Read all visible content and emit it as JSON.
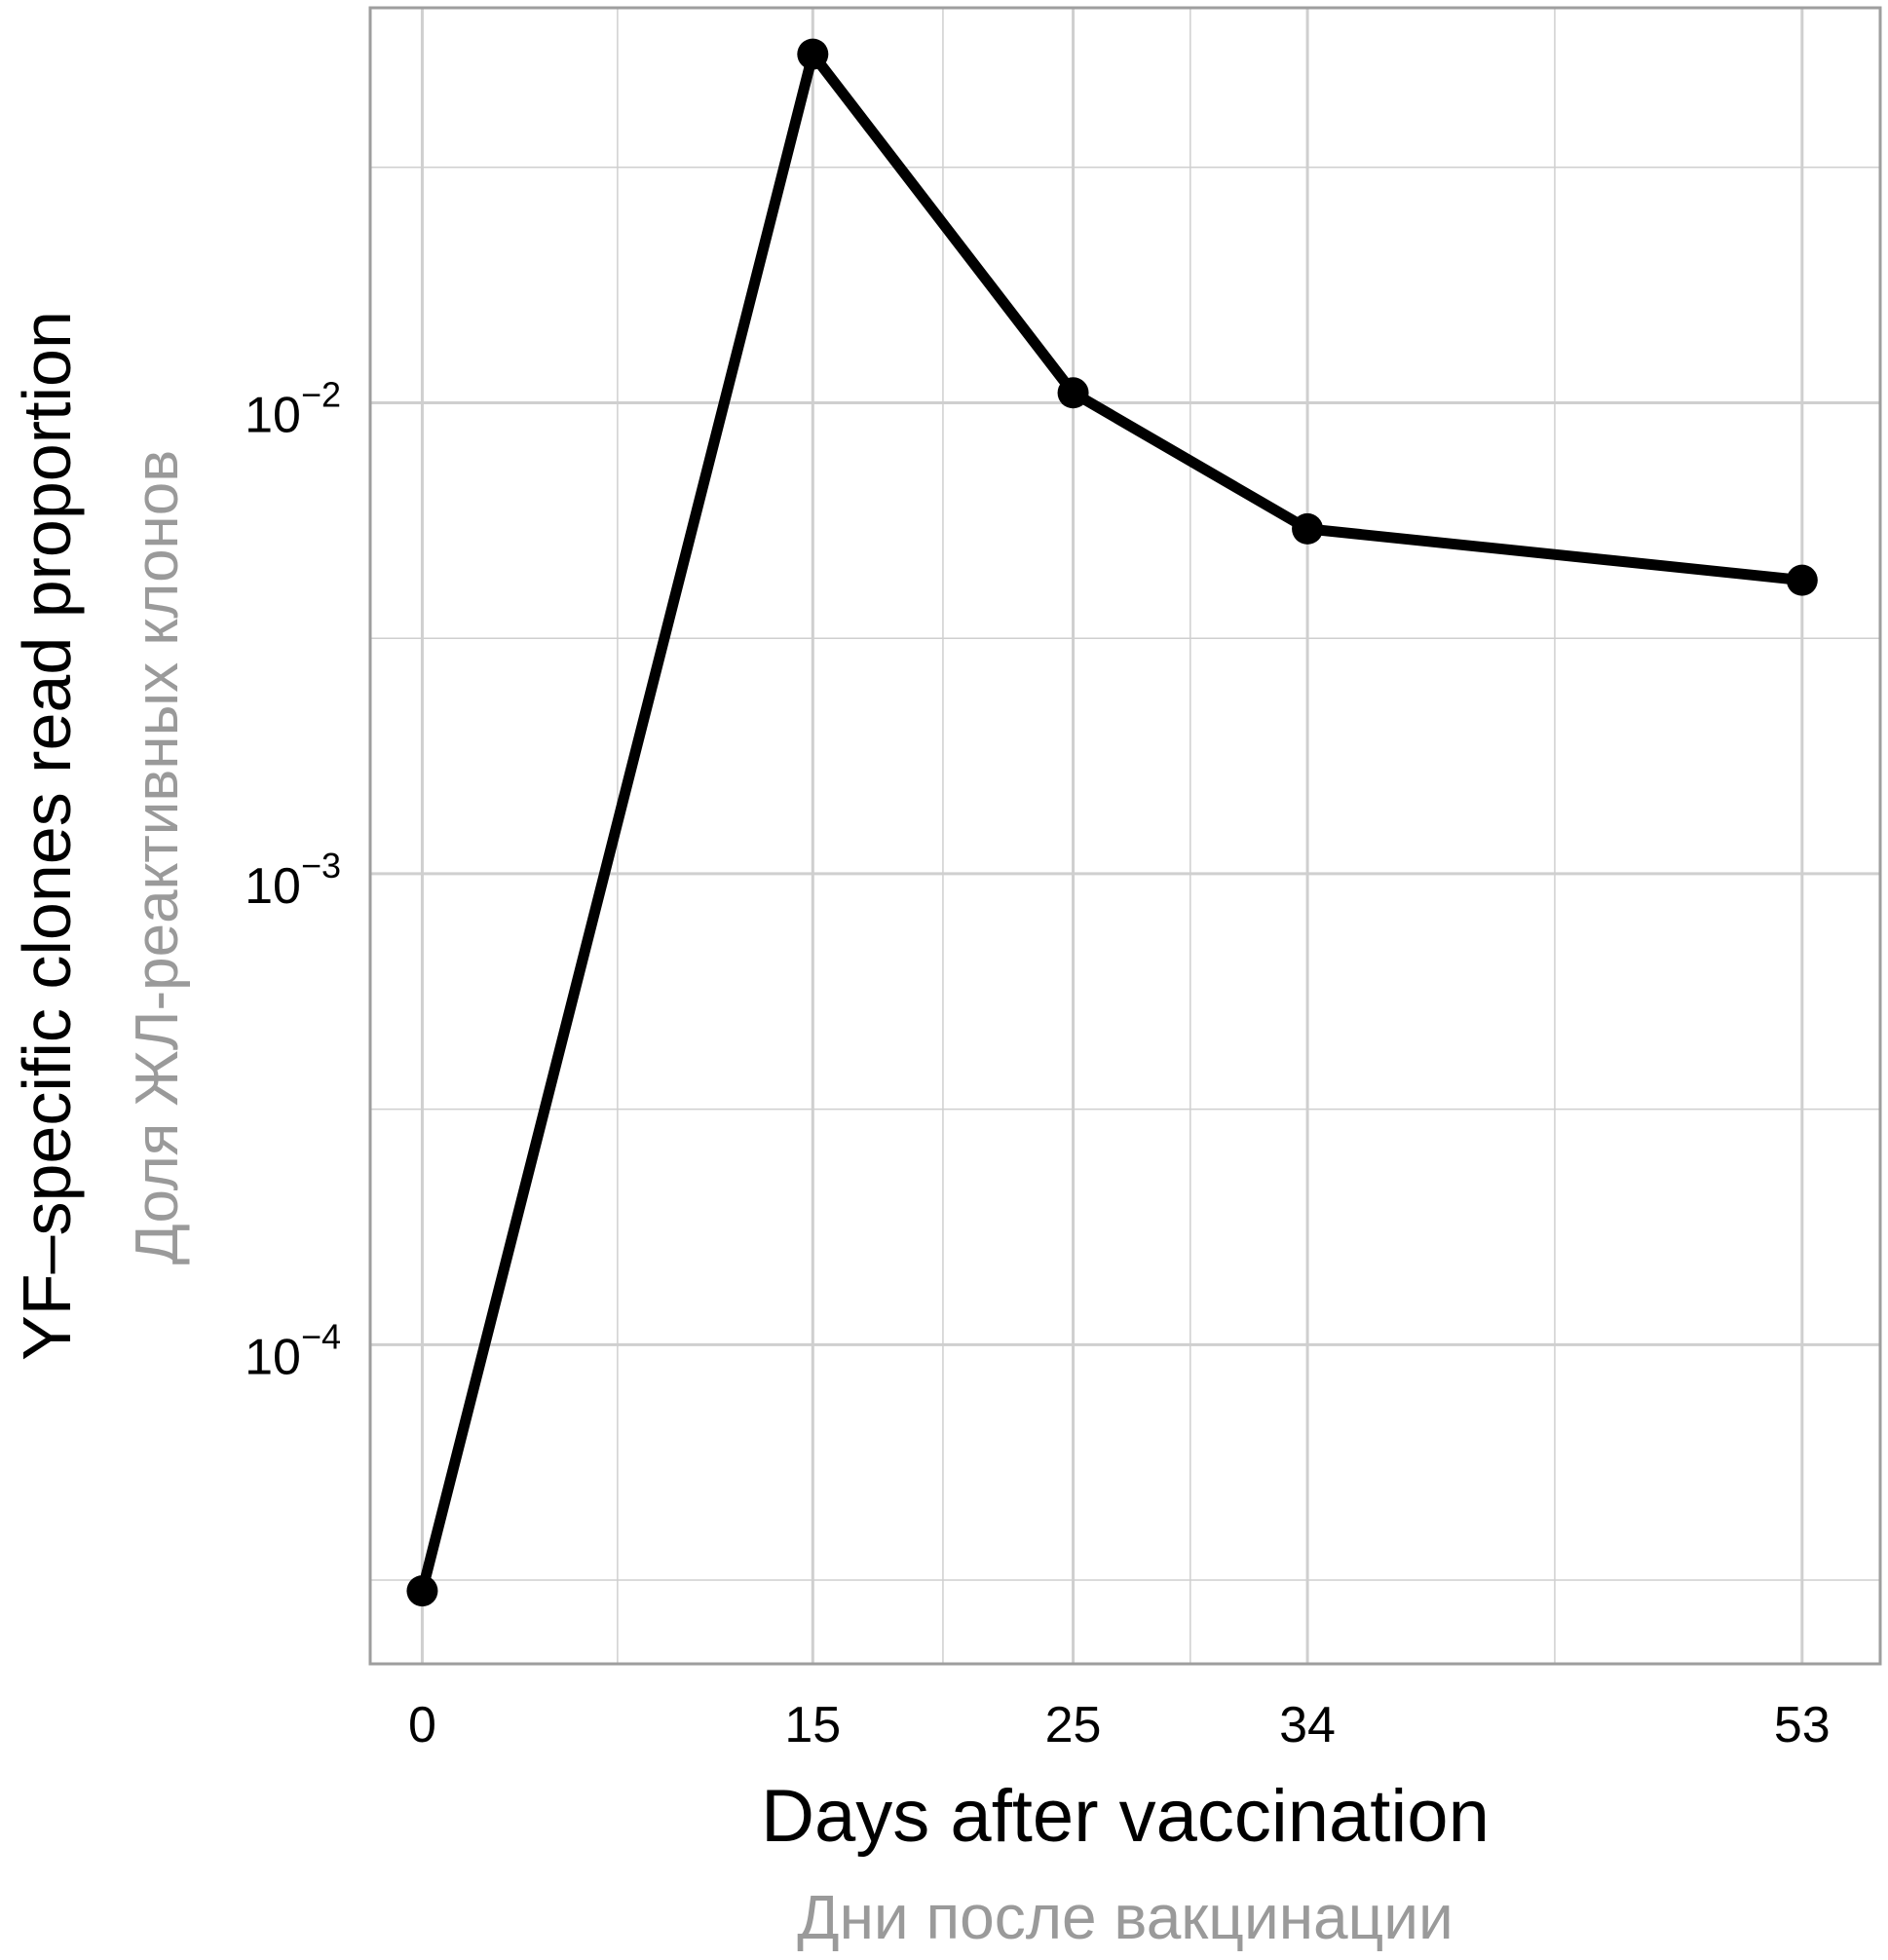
{
  "chart_data": {
    "type": "line",
    "xlabel": "Days after vaccination",
    "xlabel_ru": "Дни после вакцинации",
    "ylabel": "YF–specific clones read proportion",
    "ylabel_ru": "Доля ЖЛ-реактивных клонов",
    "y_scale": "log10",
    "xlim": [
      -2,
      56
    ],
    "ylim": [
      2.1e-05,
      0.069
    ],
    "grid": true,
    "x_ticks": [
      {
        "value": 0,
        "label": "0"
      },
      {
        "value": 15,
        "label": "15"
      },
      {
        "value": 25,
        "label": "25"
      },
      {
        "value": 34,
        "label": "34"
      },
      {
        "value": 53,
        "label": "53"
      }
    ],
    "y_ticks": [
      {
        "value": 0.0001,
        "base": "10",
        "exponent": "−4"
      },
      {
        "value": 0.001,
        "base": "10",
        "exponent": "−3"
      },
      {
        "value": 0.01,
        "base": "10",
        "exponent": "−2"
      }
    ],
    "series": [
      {
        "x": [
          0,
          15,
          25,
          34,
          53
        ],
        "y": [
          3e-05,
          0.055,
          0.0105,
          0.0054,
          0.0042
        ]
      }
    ],
    "colors": {
      "line": "#000000",
      "grid": "#cfcfcf",
      "panel_border": "#9e9e9e",
      "russian_text": "#9a9a9a"
    }
  }
}
